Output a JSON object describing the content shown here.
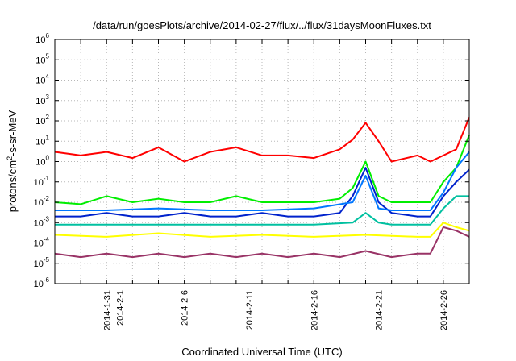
{
  "chart_data": {
    "type": "line",
    "title": "/data/run/goesPlots/archive/2014-02-27/flux/../flux/31daysMoonFluxes.txt",
    "xlabel": "Coordinated Universal Time (UTC)",
    "ylabel_main": "protons/cm",
    "ylabel_sup": "2",
    "ylabel_tail": "-s-sr-MeV",
    "y_scale": "log",
    "grid": true,
    "legend": "none",
    "xlim": [
      "2014-01-27",
      "2014-02-28"
    ],
    "ylim": [
      1e-06,
      1000000.0
    ],
    "y_ticks": [
      {
        "base": "10",
        "exp": "-6",
        "value": 1e-06
      },
      {
        "base": "10",
        "exp": "-5",
        "value": 1e-05
      },
      {
        "base": "10",
        "exp": "-4",
        "value": 0.0001
      },
      {
        "base": "10",
        "exp": "-3",
        "value": 0.001
      },
      {
        "base": "10",
        "exp": "-2",
        "value": 0.01
      },
      {
        "base": "10",
        "exp": "-1",
        "value": 0.1
      },
      {
        "base": "10",
        "exp": "0",
        "value": 1
      },
      {
        "base": "10",
        "exp": "1",
        "value": 10
      },
      {
        "base": "10",
        "exp": "2",
        "value": 100
      },
      {
        "base": "10",
        "exp": "3",
        "value": 1000
      },
      {
        "base": "10",
        "exp": "4",
        "value": 10000
      },
      {
        "base": "10",
        "exp": "5",
        "value": 100000
      },
      {
        "base": "10",
        "exp": "6",
        "value": 1000000
      }
    ],
    "x_ticks": [
      {
        "label": "2014-1-31",
        "date": "2014-01-31"
      },
      {
        "label": "2014-2-1",
        "date": "2014-02-01"
      },
      {
        "label": "2014-2-6",
        "date": "2014-02-06"
      },
      {
        "label": "2014-2-11",
        "date": "2014-02-11"
      },
      {
        "label": "2014-2-16",
        "date": "2014-02-16"
      },
      {
        "label": "2014-2-21",
        "date": "2014-02-21"
      },
      {
        "label": "2014-2-26",
        "date": "2014-02-26"
      }
    ],
    "x_grid_dates": [
      "2014-01-29",
      "2014-01-31",
      "2014-02-02",
      "2014-02-04",
      "2014-02-06",
      "2014-02-08",
      "2014-02-10",
      "2014-02-12",
      "2014-02-14",
      "2014-02-16",
      "2014-02-18",
      "2014-02-20",
      "2014-02-22",
      "2014-02-24",
      "2014-02-26"
    ],
    "series": [
      {
        "color": "#ff0000",
        "x": [
          "2014-01-27",
          "2014-01-29",
          "2014-01-31",
          "2014-02-02",
          "2014-02-04",
          "2014-02-06",
          "2014-02-08",
          "2014-02-10",
          "2014-02-12",
          "2014-02-14",
          "2014-02-16",
          "2014-02-18",
          "2014-02-19",
          "2014-02-20",
          "2014-02-21",
          "2014-02-22",
          "2014-02-24",
          "2014-02-25",
          "2014-02-26",
          "2014-02-27",
          "2014-02-28"
        ],
        "y": [
          3,
          2,
          3,
          1.5,
          5,
          1,
          3,
          5,
          2,
          2,
          1.5,
          4,
          12,
          80,
          10,
          1,
          2,
          1,
          2,
          4,
          150
        ]
      },
      {
        "color": "#00ee00",
        "x": [
          "2014-01-27",
          "2014-01-29",
          "2014-01-31",
          "2014-02-02",
          "2014-02-04",
          "2014-02-06",
          "2014-02-08",
          "2014-02-10",
          "2014-02-12",
          "2014-02-14",
          "2014-02-16",
          "2014-02-18",
          "2014-02-19",
          "2014-02-20",
          "2014-02-21",
          "2014-02-22",
          "2014-02-24",
          "2014-02-25",
          "2014-02-26",
          "2014-02-27",
          "2014-02-28"
        ],
        "y": [
          0.01,
          0.008,
          0.02,
          0.01,
          0.015,
          0.01,
          0.01,
          0.02,
          0.01,
          0.01,
          0.01,
          0.015,
          0.05,
          1,
          0.02,
          0.01,
          0.01,
          0.01,
          0.1,
          0.5,
          20
        ]
      },
      {
        "color": "#0022cc",
        "x": [
          "2014-01-27",
          "2014-01-29",
          "2014-01-31",
          "2014-02-02",
          "2014-02-04",
          "2014-02-06",
          "2014-02-08",
          "2014-02-10",
          "2014-02-12",
          "2014-02-14",
          "2014-02-16",
          "2014-02-18",
          "2014-02-19",
          "2014-02-20",
          "2014-02-21",
          "2014-02-22",
          "2014-02-24",
          "2014-02-25",
          "2014-02-26",
          "2014-02-27",
          "2014-02-28"
        ],
        "y": [
          0.002,
          0.002,
          0.003,
          0.002,
          0.002,
          0.003,
          0.002,
          0.002,
          0.003,
          0.002,
          0.002,
          0.003,
          0.02,
          0.5,
          0.01,
          0.003,
          0.002,
          0.002,
          0.02,
          0.1,
          0.4
        ]
      },
      {
        "color": "#0077ff",
        "x": [
          "2014-01-27",
          "2014-01-31",
          "2014-02-04",
          "2014-02-08",
          "2014-02-12",
          "2014-02-16",
          "2014-02-19",
          "2014-02-20",
          "2014-02-21",
          "2014-02-22",
          "2014-02-25",
          "2014-02-26",
          "2014-02-27",
          "2014-02-28"
        ],
        "y": [
          0.004,
          0.004,
          0.005,
          0.004,
          0.004,
          0.005,
          0.01,
          0.2,
          0.005,
          0.004,
          0.004,
          0.03,
          0.5,
          3
        ]
      },
      {
        "color": "#00c0a0",
        "x": [
          "2014-01-27",
          "2014-01-31",
          "2014-02-04",
          "2014-02-08",
          "2014-02-12",
          "2014-02-16",
          "2014-02-19",
          "2014-02-20",
          "2014-02-21",
          "2014-02-22",
          "2014-02-25",
          "2014-02-26",
          "2014-02-27",
          "2014-02-28"
        ],
        "y": [
          0.0008,
          0.0008,
          0.0008,
          0.0008,
          0.0008,
          0.0008,
          0.001,
          0.003,
          0.001,
          0.0008,
          0.0008,
          0.005,
          0.02,
          0.02
        ]
      },
      {
        "color": "#ffff00",
        "x": [
          "2014-01-27",
          "2014-01-31",
          "2014-02-04",
          "2014-02-08",
          "2014-02-12",
          "2014-02-16",
          "2014-02-20",
          "2014-02-24",
          "2014-02-25",
          "2014-02-26",
          "2014-02-27",
          "2014-02-28"
        ],
        "y": [
          0.00025,
          0.0002,
          0.0003,
          0.0002,
          0.00025,
          0.0002,
          0.00025,
          0.0002,
          0.0002,
          0.001,
          0.0006,
          0.0004
        ]
      },
      {
        "color": "#993366",
        "x": [
          "2014-01-27",
          "2014-01-29",
          "2014-01-31",
          "2014-02-02",
          "2014-02-04",
          "2014-02-06",
          "2014-02-08",
          "2014-02-10",
          "2014-02-12",
          "2014-02-14",
          "2014-02-16",
          "2014-02-18",
          "2014-02-20",
          "2014-02-22",
          "2014-02-24",
          "2014-02-25",
          "2014-02-26",
          "2014-02-27",
          "2014-02-28"
        ],
        "y": [
          3e-05,
          2e-05,
          3e-05,
          2e-05,
          3e-05,
          2e-05,
          3e-05,
          2e-05,
          3e-05,
          2e-05,
          3e-05,
          2e-05,
          4e-05,
          2e-05,
          3e-05,
          3e-05,
          0.0006,
          0.0004,
          0.0002
        ]
      }
    ]
  }
}
